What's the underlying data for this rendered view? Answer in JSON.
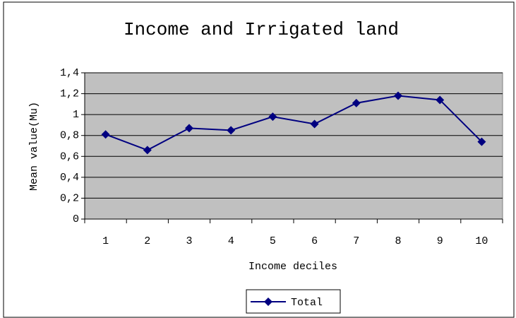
{
  "chart_data": {
    "type": "line",
    "title": "Income and Irrigated land",
    "x_label": "Income deciles",
    "y_label": "Mean value(Mu)",
    "categories": [
      "1",
      "2",
      "3",
      "4",
      "5",
      "6",
      "7",
      "8",
      "9",
      "10"
    ],
    "series": [
      {
        "name": "Total",
        "color": "#000080",
        "values": [
          0.81,
          0.66,
          0.87,
          0.85,
          0.98,
          0.91,
          1.11,
          1.18,
          1.14,
          0.74
        ]
      }
    ],
    "ylim": [
      0,
      1.4
    ],
    "yticks": [
      0,
      {
        "value": 0.2,
        "label": "0,2"
      },
      {
        "value": 0.4,
        "label": "0,4"
      },
      {
        "value": 0.6,
        "label": "0,6"
      },
      {
        "value": 0.8,
        "label": "0,8"
      },
      1,
      {
        "value": 1.2,
        "label": "1,2"
      },
      {
        "value": 1.4,
        "label": "1,4"
      }
    ],
    "grid": true,
    "legend": "bottom",
    "plot_background": "#c0c0c0"
  }
}
